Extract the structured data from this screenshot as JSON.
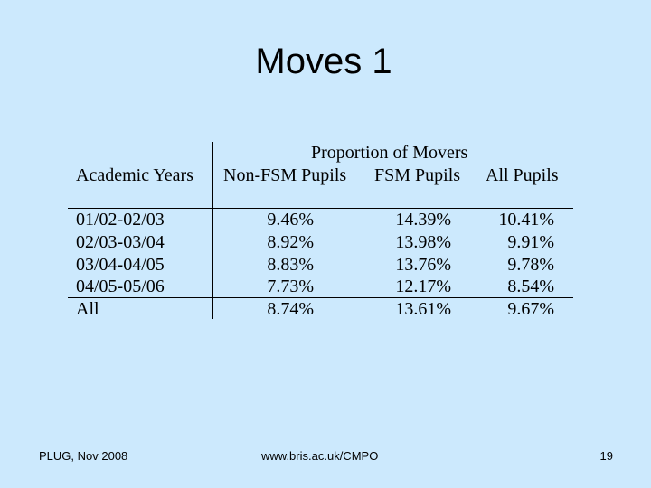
{
  "title": "Moves 1",
  "table": {
    "group_header": "Proportion of Movers",
    "row_header": "Academic Years",
    "columns": [
      "Non-FSM Pupils",
      "FSM Pupils",
      "All Pupils"
    ],
    "rows": [
      {
        "label": "01/02-02/03",
        "values": [
          "9.46%",
          "14.39%",
          "10.41%"
        ]
      },
      {
        "label": "02/03-03/04",
        "values": [
          "8.92%",
          "13.98%",
          "9.91%"
        ]
      },
      {
        "label": "03/04-04/05",
        "values": [
          "8.83%",
          "13.76%",
          "9.78%"
        ]
      },
      {
        "label": "04/05-05/06",
        "values": [
          "7.73%",
          "12.17%",
          "8.54%"
        ]
      },
      {
        "label": "All",
        "values": [
          "8.74%",
          "13.61%",
          "9.67%"
        ]
      }
    ]
  },
  "footer": {
    "left": "PLUG, Nov 2008",
    "center": "www.bris.ac.uk/CMPO",
    "page_number": "19"
  }
}
